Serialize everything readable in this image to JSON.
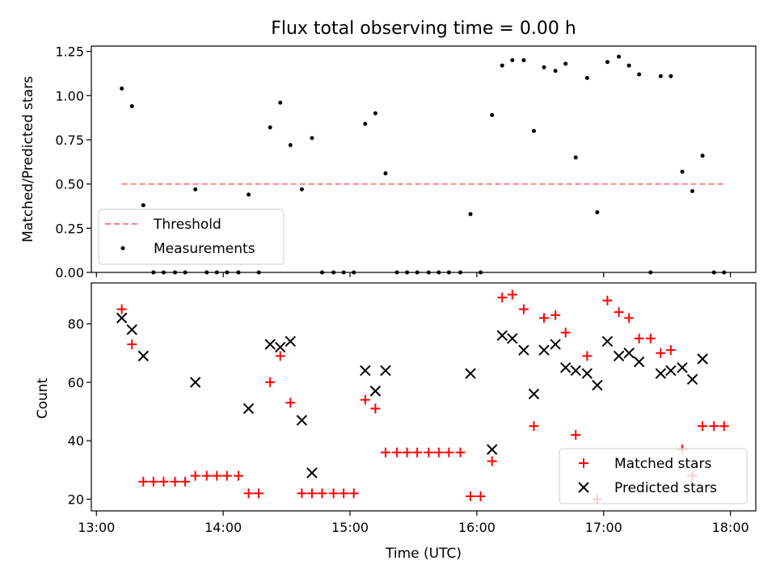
{
  "chart_data": [
    {
      "type": "scatter",
      "title": "Flux total observing time = 0.00 h",
      "xlabel": "",
      "ylabel": "Matched/Predicted stars",
      "xlim": [
        12.96,
        18.2
      ],
      "ylim": [
        0,
        1.28
      ],
      "xticks": [
        13,
        14,
        15,
        16,
        17,
        18
      ],
      "xticklabels": [],
      "yticks": [
        0,
        0.25,
        0.5,
        0.75,
        1.0,
        1.25
      ],
      "yticklabels": [
        "0.00",
        "0.25",
        "0.50",
        "0.75",
        "1.00",
        "1.25"
      ],
      "grid": false,
      "legend_position": "lower-left",
      "series": [
        {
          "name": "Threshold",
          "style": "dashed-line",
          "color": "#ff7f7f",
          "x": [
            13.2,
            17.95
          ],
          "y": [
            0.5,
            0.5
          ]
        },
        {
          "name": "Measurements",
          "style": "dot",
          "color": "#000000",
          "x": [
            13.2,
            13.28,
            13.37,
            13.45,
            13.53,
            13.62,
            13.7,
            13.78,
            13.87,
            13.95,
            14.03,
            14.12,
            14.2,
            14.28,
            14.37,
            14.45,
            14.53,
            14.62,
            14.7,
            14.78,
            14.87,
            14.95,
            15.03,
            15.12,
            15.2,
            15.28,
            15.37,
            15.45,
            15.53,
            15.62,
            15.7,
            15.78,
            15.87,
            15.95,
            16.03,
            16.12,
            16.2,
            16.28,
            16.37,
            16.45,
            16.53,
            16.62,
            16.7,
            16.78,
            16.87,
            16.95,
            17.03,
            17.12,
            17.2,
            17.28,
            17.37,
            17.45,
            17.53,
            17.62,
            17.7,
            17.78,
            17.87,
            17.95
          ],
          "y": [
            1.04,
            0.94,
            0.38,
            0.0,
            0.0,
            0.0,
            0.0,
            0.47,
            0.0,
            0.0,
            0.0,
            0.0,
            0.44,
            0.0,
            0.82,
            0.96,
            0.72,
            0.47,
            0.76,
            0.0,
            0.0,
            0.0,
            0.0,
            0.84,
            0.9,
            0.56,
            0.0,
            0.0,
            0.0,
            0.0,
            0.0,
            0.0,
            0.0,
            0.33,
            0.0,
            0.89,
            1.17,
            1.2,
            1.2,
            0.8,
            1.16,
            1.14,
            1.18,
            0.65,
            1.1,
            0.34,
            1.19,
            1.22,
            1.17,
            1.12,
            0.0,
            1.11,
            1.11,
            0.57,
            0.46,
            0.66,
            0.0,
            0.0
          ]
        }
      ]
    },
    {
      "type": "scatter",
      "title": "",
      "xlabel": "Time (UTC)",
      "ylabel": "Count",
      "xlim": [
        12.96,
        18.2
      ],
      "ylim": [
        16,
        94
      ],
      "xticks": [
        13,
        14,
        15,
        16,
        17,
        18
      ],
      "xticklabels": [
        "13:00",
        "14:00",
        "15:00",
        "16:00",
        "17:00",
        "18:00"
      ],
      "yticks": [
        20,
        40,
        60,
        80
      ],
      "yticklabels": [
        "20",
        "40",
        "60",
        "80"
      ],
      "grid": false,
      "legend_position": "lower-right",
      "series": [
        {
          "name": "Matched stars",
          "style": "plus",
          "color": "#ff0000",
          "x": [
            13.2,
            13.28,
            13.37,
            13.45,
            13.53,
            13.62,
            13.7,
            13.78,
            13.87,
            13.95,
            14.03,
            14.12,
            14.2,
            14.28,
            14.37,
            14.45,
            14.53,
            14.62,
            14.7,
            14.78,
            14.87,
            14.95,
            15.03,
            15.12,
            15.2,
            15.28,
            15.37,
            15.45,
            15.53,
            15.62,
            15.7,
            15.78,
            15.87,
            15.95,
            16.03,
            16.12,
            16.2,
            16.28,
            16.37,
            16.45,
            16.53,
            16.62,
            16.7,
            16.78,
            16.87,
            16.95,
            17.03,
            17.12,
            17.2,
            17.28,
            17.37,
            17.45,
            17.53,
            17.62,
            17.7,
            17.78,
            17.87,
            17.95
          ],
          "y": [
            85,
            73,
            26,
            26,
            26,
            26,
            26,
            28,
            28,
            28,
            28,
            28,
            22,
            22,
            60,
            69,
            53,
            22,
            22,
            22,
            22,
            22,
            22,
            54,
            51,
            36,
            36,
            36,
            36,
            36,
            36,
            36,
            36,
            21,
            21,
            33,
            89,
            90,
            85,
            45,
            82,
            83,
            77,
            42,
            69,
            20,
            88,
            84,
            82,
            75,
            75,
            70,
            71,
            37,
            28,
            45,
            45,
            45
          ]
        },
        {
          "name": "Predicted stars",
          "style": "x",
          "color": "#000000",
          "x": [
            13.2,
            13.28,
            13.37,
            13.78,
            14.2,
            14.37,
            14.45,
            14.53,
            14.62,
            14.7,
            15.12,
            15.2,
            15.28,
            15.95,
            16.12,
            16.2,
            16.28,
            16.37,
            16.45,
            16.53,
            16.62,
            16.7,
            16.78,
            16.87,
            16.95,
            17.03,
            17.12,
            17.2,
            17.28,
            17.45,
            17.53,
            17.62,
            17.7,
            17.78
          ],
          "y": [
            82,
            78,
            69,
            60,
            51,
            73,
            72,
            74,
            47,
            29,
            64,
            57,
            64,
            63,
            37,
            76,
            75,
            71,
            56,
            71,
            73,
            65,
            64,
            63,
            59,
            74,
            69,
            70,
            67,
            63,
            64,
            65,
            61,
            68
          ]
        }
      ]
    }
  ]
}
